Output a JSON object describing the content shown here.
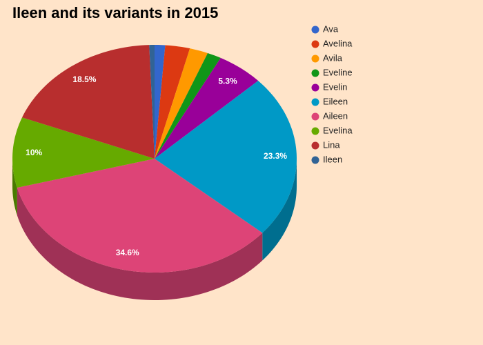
{
  "chart_data": {
    "type": "pie3d",
    "title": "Ileen and its variants in 2015",
    "categories": [
      "Ava",
      "Avelina",
      "Avila",
      "Eveline",
      "Evelin",
      "Eileen",
      "Aileen",
      "Evelina",
      "Lina",
      "Ileen"
    ],
    "values": [
      1.2,
      2.8,
      2.1,
      1.6,
      5.3,
      23.3,
      34.6,
      10,
      18.5,
      0.6
    ],
    "value_labels": [
      null,
      null,
      null,
      null,
      "5.3%",
      "23.3%",
      "34.6%",
      "10%",
      "18.5%",
      null
    ],
    "colors": [
      "#3366cc",
      "#dc3912",
      "#ff9900",
      "#109618",
      "#990099",
      "#0099c6",
      "#dd4477",
      "#66aa00",
      "#b82e2e",
      "#316395"
    ],
    "legend": "right"
  }
}
